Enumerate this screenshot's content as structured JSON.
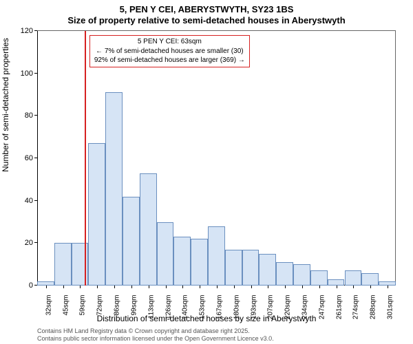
{
  "titles": {
    "line1": "5, PEN Y CEI, ABERYSTWYTH, SY23 1BS",
    "line2": "Size of property relative to semi-detached houses in Aberystwyth"
  },
  "axes": {
    "ylabel": "Number of semi-detached properties",
    "xlabel": "Distribution of semi-detached houses by size in Aberystwyth",
    "ylim": [
      0,
      120
    ],
    "ytick_step": 20,
    "yticks": [
      0,
      20,
      40,
      60,
      80,
      100,
      120
    ],
    "xlim": [
      25,
      308
    ]
  },
  "histogram": {
    "type": "histogram",
    "bin_start": 25,
    "bin_width": 13.5,
    "bar_fill": "#d6e4f5",
    "bar_stroke": "#6a8fbf",
    "values": [
      2,
      20,
      20,
      67,
      91,
      42,
      53,
      30,
      23,
      22,
      28,
      17,
      17,
      15,
      11,
      10,
      7,
      3,
      7,
      6,
      2
    ]
  },
  "xticks": {
    "start": 32,
    "step": 13.5,
    "labels": [
      "32sqm",
      "45sqm",
      "59sqm",
      "72sqm",
      "86sqm",
      "99sqm",
      "113sqm",
      "126sqm",
      "140sqm",
      "153sqm",
      "167sqm",
      "180sqm",
      "193sqm",
      "207sqm",
      "220sqm",
      "234sqm",
      "247sqm",
      "261sqm",
      "274sqm",
      "288sqm",
      "301sqm"
    ]
  },
  "reference_line": {
    "x": 63,
    "color": "#d62020",
    "width": 2
  },
  "annotation": {
    "border_color": "#d62020",
    "lines": {
      "l1": "5 PEN Y CEI: 63sqm",
      "l2": "← 7% of semi-detached houses are smaller (30)",
      "l3": "92% of semi-detached houses are larger (369) →"
    }
  },
  "footnotes": {
    "f1": "Contains HM Land Registry data © Crown copyright and database right 2025.",
    "f2": "Contains public sector information licensed under the Open Government Licence v3.0."
  },
  "style": {
    "title_fontsize": 13,
    "label_fontsize": 12,
    "tick_fontsize": 11,
    "xtick_fontsize": 10,
    "annotation_fontsize": 10,
    "footnote_fontsize": 9,
    "background": "#ffffff"
  }
}
